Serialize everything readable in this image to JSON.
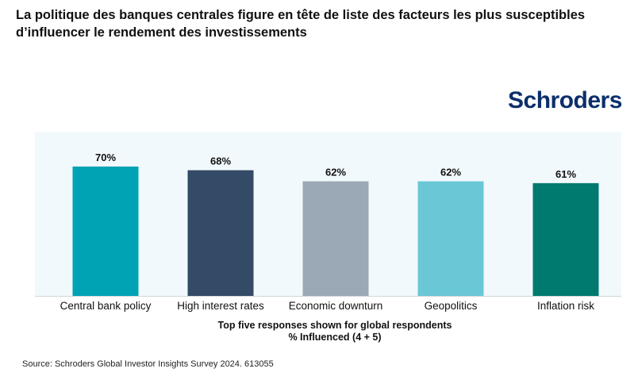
{
  "title": "La politique des banques centrales figure en tête de liste des facteurs les plus susceptibles d’influencer le rendement des investissements",
  "logo": "Schroders",
  "source": "Source: Schroders Global Investor Insights Survey 2024. 613055",
  "chart_data": {
    "type": "bar",
    "categories": [
      "Central bank policy",
      "High interest rates",
      "Economic downturn",
      "Geopolitics",
      "Inflation risk"
    ],
    "values": [
      70,
      68,
      62,
      62,
      61
    ],
    "data_labels": [
      "70%",
      "68%",
      "62%",
      "62%",
      "61%"
    ],
    "colors": [
      "#00a3b4",
      "#334b66",
      "#9aa9b5",
      "#6ac7d6",
      "#007a6e"
    ],
    "xlabel_line1": "Top five responses shown for global respondents",
    "xlabel_line2": "% Influenced (4 + 5)",
    "ylabel": "",
    "ylim": [
      0,
      100
    ],
    "grid": false
  }
}
